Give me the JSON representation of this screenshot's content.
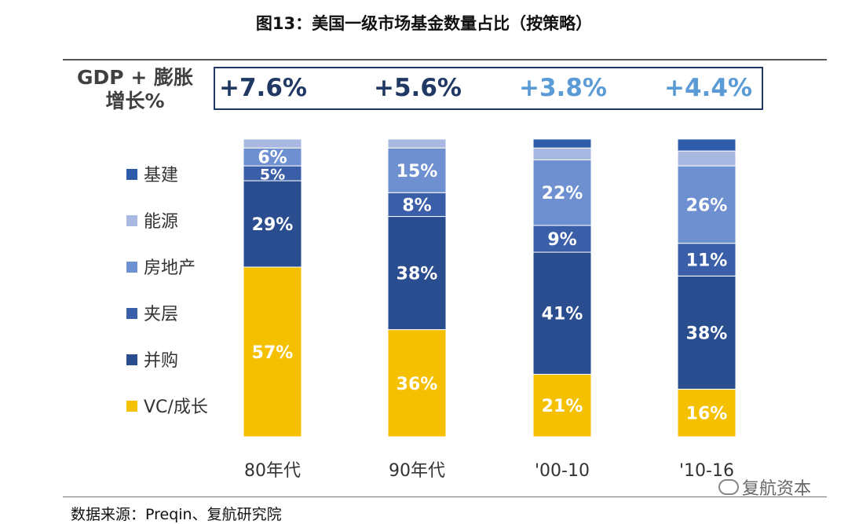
{
  "title": "图13：美国一级市场基金数量占比（按策略）",
  "gdp": {
    "label_line1": "GDP + 膨胀",
    "label_line2": "增长%",
    "values": [
      "+7.6%",
      "+5.6%",
      "+3.8%",
      "+4.4%"
    ],
    "colors": [
      "#1f3864",
      "#1f3864",
      "#5b9bd5",
      "#5b9bd5"
    ]
  },
  "chart_data": {
    "type": "bar",
    "stacked": true,
    "normalized": true,
    "categories": [
      "80年代",
      "90年代",
      "'00-10",
      "'10-16"
    ],
    "series": [
      {
        "name": "VC/成长",
        "color": "#f5c000",
        "values": [
          57,
          36,
          21,
          16
        ]
      },
      {
        "name": "并购",
        "color": "#2a4d8f",
        "values": [
          29,
          38,
          41,
          38
        ]
      },
      {
        "name": "夹层",
        "color": "#3a5ea8",
        "values": [
          5,
          8,
          9,
          11
        ]
      },
      {
        "name": "房地产",
        "color": "#6e8fd0",
        "values": [
          6,
          15,
          22,
          26
        ]
      },
      {
        "name": "能源",
        "color": "#a9b8e0",
        "values": [
          3,
          3,
          4,
          5
        ]
      },
      {
        "name": "基建",
        "color": "#2e5baa",
        "values": [
          0,
          0,
          3,
          4
        ]
      }
    ],
    "data_labels": [
      [
        "57%",
        "29%",
        "5%",
        "6%",
        "",
        ""
      ],
      [
        "36%",
        "38%",
        "8%",
        "15%",
        "",
        ""
      ],
      [
        "21%",
        "41%",
        "9%",
        "22%",
        "",
        ""
      ],
      [
        "16%",
        "38%",
        "11%",
        "26%",
        "",
        ""
      ]
    ],
    "legend_order": [
      "基建",
      "能源",
      "房地产",
      "夹层",
      "并购",
      "VC/成长"
    ],
    "legend_position": "left",
    "ylim": [
      0,
      100
    ],
    "title": "",
    "xlabel": "",
    "ylabel": ""
  },
  "source": "数据来源：Preqin、复航研究院",
  "watermark": "复航资本"
}
